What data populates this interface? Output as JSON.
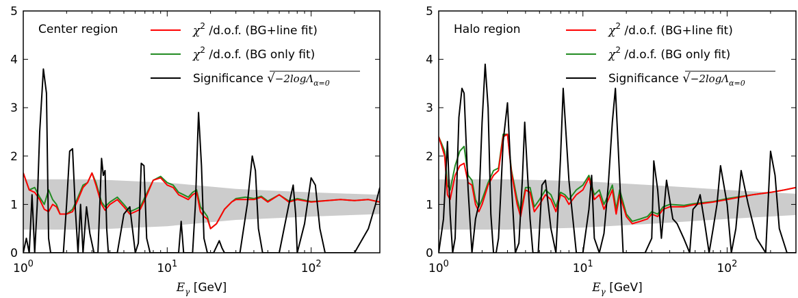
{
  "chart_data": [
    {
      "type": "line",
      "annotation": "Center region",
      "xscale": "log",
      "xlim": [
        1,
        300
      ],
      "ylim": [
        0,
        5
      ],
      "xlabel": "E_γ [GeV]",
      "xticks": [
        1,
        10,
        100
      ],
      "xtick_labels": [
        "10⁰",
        "10¹",
        "10²"
      ],
      "yticks": [
        0,
        1,
        2,
        3,
        4,
        5
      ],
      "grid": false,
      "legend_position": "top-right",
      "band": {
        "color": "#cccccc",
        "x": [
          1,
          3,
          10,
          30,
          100,
          300
        ],
        "lower": [
          0.48,
          0.48,
          0.55,
          0.68,
          0.75,
          0.8
        ],
        "upper": [
          1.52,
          1.52,
          1.45,
          1.32,
          1.25,
          1.2
        ]
      },
      "series": [
        {
          "name": "χ² /d.o.f. (BG+line fit)",
          "color": "#ff0000",
          "x": [
            1,
            1.1,
            1.2,
            1.3,
            1.4,
            1.5,
            1.6,
            1.7,
            1.8,
            2,
            2.2,
            2.4,
            2.6,
            2.8,
            3,
            3.2,
            3.5,
            3.7,
            4,
            4.5,
            5,
            5.5,
            6,
            6.5,
            7,
            8,
            9,
            10,
            11,
            12,
            13,
            14,
            15,
            16,
            17,
            18,
            19,
            20,
            22,
            25,
            28,
            30,
            35,
            40,
            45,
            50,
            60,
            70,
            80,
            100,
            130,
            160,
            200,
            250,
            300
          ],
          "values": [
            1.65,
            1.3,
            1.25,
            1.1,
            0.9,
            0.85,
            1.0,
            0.95,
            0.8,
            0.8,
            0.85,
            1.1,
            1.35,
            1.45,
            1.65,
            1.4,
            1.0,
            0.88,
            1.0,
            1.1,
            0.95,
            0.8,
            0.85,
            0.9,
            1.1,
            1.5,
            1.55,
            1.4,
            1.35,
            1.2,
            1.15,
            1.1,
            1.2,
            1.25,
            0.85,
            0.75,
            0.7,
            0.5,
            0.6,
            0.9,
            1.05,
            1.1,
            1.1,
            1.1,
            1.15,
            1.05,
            1.2,
            1.05,
            1.1,
            1.05,
            1.08,
            1.1,
            1.08,
            1.1,
            1.05
          ]
        },
        {
          "name": "χ² /d.o.f. (BG only fit)",
          "color": "#228b22",
          "x": [
            1,
            1.1,
            1.2,
            1.3,
            1.4,
            1.5,
            1.6,
            1.7,
            1.8,
            2,
            2.2,
            2.4,
            2.6,
            2.8,
            3,
            3.2,
            3.5,
            3.7,
            4,
            4.5,
            5,
            5.5,
            6,
            6.5,
            7,
            8,
            9,
            10,
            11,
            12,
            13,
            14,
            15,
            16,
            17,
            18,
            19,
            20,
            22,
            25,
            28,
            30,
            35,
            40,
            45,
            50,
            60,
            70,
            80,
            100,
            130,
            160,
            200,
            250,
            300
          ],
          "values": [
            1.65,
            1.3,
            1.35,
            1.15,
            1.0,
            1.3,
            1.1,
            1.0,
            0.8,
            0.8,
            0.9,
            1.15,
            1.4,
            1.45,
            1.65,
            1.45,
            1.05,
            0.95,
            1.05,
            1.15,
            1.0,
            0.85,
            0.9,
            0.95,
            1.15,
            1.5,
            1.58,
            1.45,
            1.4,
            1.25,
            1.2,
            1.15,
            1.25,
            1.3,
            0.95,
            0.85,
            0.75,
            0.5,
            0.6,
            0.9,
            1.05,
            1.12,
            1.15,
            1.12,
            1.17,
            1.07,
            1.2,
            1.07,
            1.12,
            1.06,
            1.08,
            1.1,
            1.08,
            1.1,
            1.05
          ]
        },
        {
          "name": "Significance √(−2logΛ_α=0)",
          "color": "#000000",
          "x": [
            1,
            1.05,
            1.1,
            1.15,
            1.2,
            1.25,
            1.3,
            1.38,
            1.45,
            1.5,
            1.55,
            1.62,
            1.7,
            1.8,
            1.9,
            2.0,
            2.1,
            2.2,
            2.3,
            2.4,
            2.5,
            2.6,
            2.75,
            2.9,
            3.1,
            3.3,
            3.5,
            3.6,
            3.7,
            3.8,
            3.9,
            4.1,
            4.5,
            5,
            5.5,
            6,
            6.3,
            6.6,
            6.9,
            7.2,
            7.6,
            8.5,
            10,
            11,
            12,
            12.5,
            13,
            13.5,
            14,
            15,
            15.7,
            16.5,
            17.3,
            18,
            19,
            21,
            23,
            24,
            25,
            28,
            32,
            36,
            39,
            41,
            43,
            46,
            50,
            60,
            70,
            75,
            78,
            80,
            90,
            100,
            107,
            115,
            125,
            140,
            160,
            200,
            250,
            280,
            300
          ],
          "values": [
            0,
            0.3,
            0,
            1.2,
            0,
            1.0,
            2.5,
            3.8,
            3.3,
            0.3,
            0,
            0,
            0,
            0,
            0,
            1.0,
            2.1,
            2.15,
            0.9,
            0,
            1.0,
            0,
            0.95,
            0.4,
            0,
            0,
            1.95,
            1.6,
            1.7,
            0.5,
            0,
            0,
            0,
            0.8,
            0.95,
            0,
            0.2,
            1.85,
            1.8,
            0.3,
            0,
            0,
            0,
            0,
            0,
            0.65,
            0,
            0,
            0,
            0,
            1.0,
            2.9,
            1.8,
            0.3,
            0,
            0,
            0.25,
            0.1,
            0,
            0,
            0,
            1.0,
            2.0,
            1.7,
            0.5,
            0,
            0,
            0,
            1.0,
            1.4,
            0.8,
            0,
            0.6,
            1.55,
            1.4,
            0.5,
            0,
            0,
            0,
            0,
            0.5,
            1.0,
            1.35
          ]
        }
      ]
    },
    {
      "type": "line",
      "annotation": "Halo region",
      "xscale": "log",
      "xlim": [
        1,
        300
      ],
      "ylim": [
        0,
        5
      ],
      "xlabel": "E_γ [GeV]",
      "xticks": [
        1,
        10,
        100
      ],
      "xtick_labels": [
        "10⁰",
        "10¹",
        "10²"
      ],
      "yticks": [
        0,
        1,
        2,
        3,
        4,
        5
      ],
      "grid": false,
      "legend_position": "top-right",
      "band": {
        "color": "#cccccc",
        "x": [
          1,
          3,
          10,
          30,
          100,
          300
        ],
        "lower": [
          0.48,
          0.48,
          0.52,
          0.6,
          0.7,
          0.78
        ],
        "upper": [
          1.52,
          1.52,
          1.48,
          1.4,
          1.3,
          1.22
        ]
      },
      "series": [
        {
          "name": "χ² /d.o.f. (BG+line fit)",
          "color": "#ff0000",
          "x": [
            1,
            1.05,
            1.1,
            1.15,
            1.2,
            1.3,
            1.4,
            1.5,
            1.6,
            1.7,
            1.8,
            1.9,
            2.0,
            2.2,
            2.4,
            2.6,
            2.8,
            3.0,
            3.2,
            3.5,
            3.7,
            4.0,
            4.3,
            4.6,
            5,
            5.5,
            6,
            6.5,
            7,
            7.5,
            8,
            9,
            10,
            11,
            12,
            13,
            14,
            15,
            16,
            17,
            18,
            20,
            22,
            25,
            28,
            30,
            33,
            36,
            40,
            50,
            60,
            80,
            100,
            150,
            200,
            250,
            300
          ],
          "values": [
            2.4,
            2.2,
            2.0,
            1.2,
            1.1,
            1.6,
            1.8,
            1.85,
            1.45,
            1.4,
            1.0,
            0.85,
            1.0,
            1.4,
            1.6,
            1.7,
            2.4,
            2.45,
            1.65,
            1.0,
            0.75,
            1.3,
            1.25,
            0.85,
            1.0,
            1.2,
            1.1,
            0.85,
            1.2,
            1.15,
            1.0,
            1.2,
            1.3,
            1.55,
            1.1,
            1.2,
            0.9,
            1.1,
            1.3,
            0.8,
            1.2,
            0.75,
            0.6,
            0.65,
            0.7,
            0.8,
            0.75,
            0.9,
            0.95,
            0.95,
            1.0,
            1.05,
            1.1,
            1.2,
            1.25,
            1.3,
            1.35
          ]
        },
        {
          "name": "χ² /d.o.f. (BG only fit)",
          "color": "#228b22",
          "x": [
            1,
            1.05,
            1.1,
            1.15,
            1.2,
            1.3,
            1.4,
            1.5,
            1.6,
            1.7,
            1.8,
            1.9,
            2.0,
            2.2,
            2.4,
            2.6,
            2.8,
            3.0,
            3.2,
            3.5,
            3.7,
            4.0,
            4.3,
            4.6,
            5,
            5.5,
            6,
            6.5,
            7,
            7.5,
            8,
            9,
            10,
            11,
            12,
            13,
            14,
            15,
            16,
            17,
            18,
            20,
            22,
            25,
            28,
            30,
            33,
            36,
            40,
            50,
            60,
            80,
            100,
            150,
            200,
            250,
            300
          ],
          "values": [
            2.4,
            2.25,
            2.1,
            1.4,
            1.3,
            1.8,
            2.1,
            2.2,
            1.6,
            1.5,
            1.1,
            0.95,
            1.1,
            1.45,
            1.7,
            1.75,
            2.45,
            2.45,
            1.7,
            1.1,
            0.85,
            1.35,
            1.35,
            0.95,
            1.1,
            1.3,
            1.2,
            0.95,
            1.25,
            1.2,
            1.1,
            1.3,
            1.4,
            1.6,
            1.2,
            1.3,
            1.0,
            1.2,
            1.4,
            0.9,
            1.3,
            0.8,
            0.65,
            0.7,
            0.75,
            0.85,
            0.8,
            0.95,
            1.0,
            0.98,
            1.02,
            1.06,
            1.12,
            1.2,
            1.25,
            1.3,
            1.35
          ]
        },
        {
          "name": "Significance √(−2logΛ_α=0)",
          "color": "#000000",
          "x": [
            1,
            1.08,
            1.15,
            1.2,
            1.25,
            1.3,
            1.38,
            1.45,
            1.5,
            1.6,
            1.7,
            1.8,
            1.9,
            2.0,
            2.1,
            2.2,
            2.3,
            2.4,
            2.5,
            2.6,
            2.7,
            2.8,
            3.0,
            3.2,
            3.4,
            3.6,
            3.8,
            3.95,
            4.1,
            4.3,
            4.5,
            4.9,
            5.2,
            5.5,
            6,
            6.5,
            7,
            7.3,
            8,
            9,
            10,
            11,
            11.5,
            12,
            13,
            14,
            15,
            16,
            16.8,
            17.5,
            19,
            21,
            24,
            27,
            30,
            31,
            33,
            35,
            38,
            42,
            45,
            50,
            55,
            58,
            62,
            65,
            70,
            75,
            80,
            85,
            90,
            100,
            107,
            115,
            125,
            140,
            160,
            185,
            200,
            215,
            230,
            260,
            300
          ],
          "values": [
            0,
            0.7,
            2.3,
            0.8,
            0,
            0.3,
            2.8,
            3.4,
            3.3,
            1.3,
            0,
            0.7,
            1.0,
            2.7,
            3.9,
            3.0,
            0.8,
            0,
            0,
            0.3,
            1.3,
            2.3,
            3.1,
            1.4,
            0,
            0.2,
            1.5,
            2.7,
            1.8,
            0.7,
            0,
            0,
            1.4,
            1.5,
            0.5,
            0,
            2.0,
            3.4,
            1.5,
            0,
            0,
            0.9,
            1.6,
            0.3,
            0,
            0.4,
            1.4,
            2.7,
            3.4,
            2.3,
            0,
            0,
            0,
            0,
            0.3,
            1.9,
            1.3,
            0.3,
            1.5,
            0.7,
            0.6,
            0.3,
            0,
            0.9,
            1.0,
            1.2,
            0.6,
            0,
            0.5,
            1.0,
            1.8,
            1.0,
            0,
            0.5,
            1.7,
            1.0,
            0.3,
            0,
            2.1,
            1.6,
            0.5,
            0,
            0
          ]
        }
      ]
    }
  ]
}
